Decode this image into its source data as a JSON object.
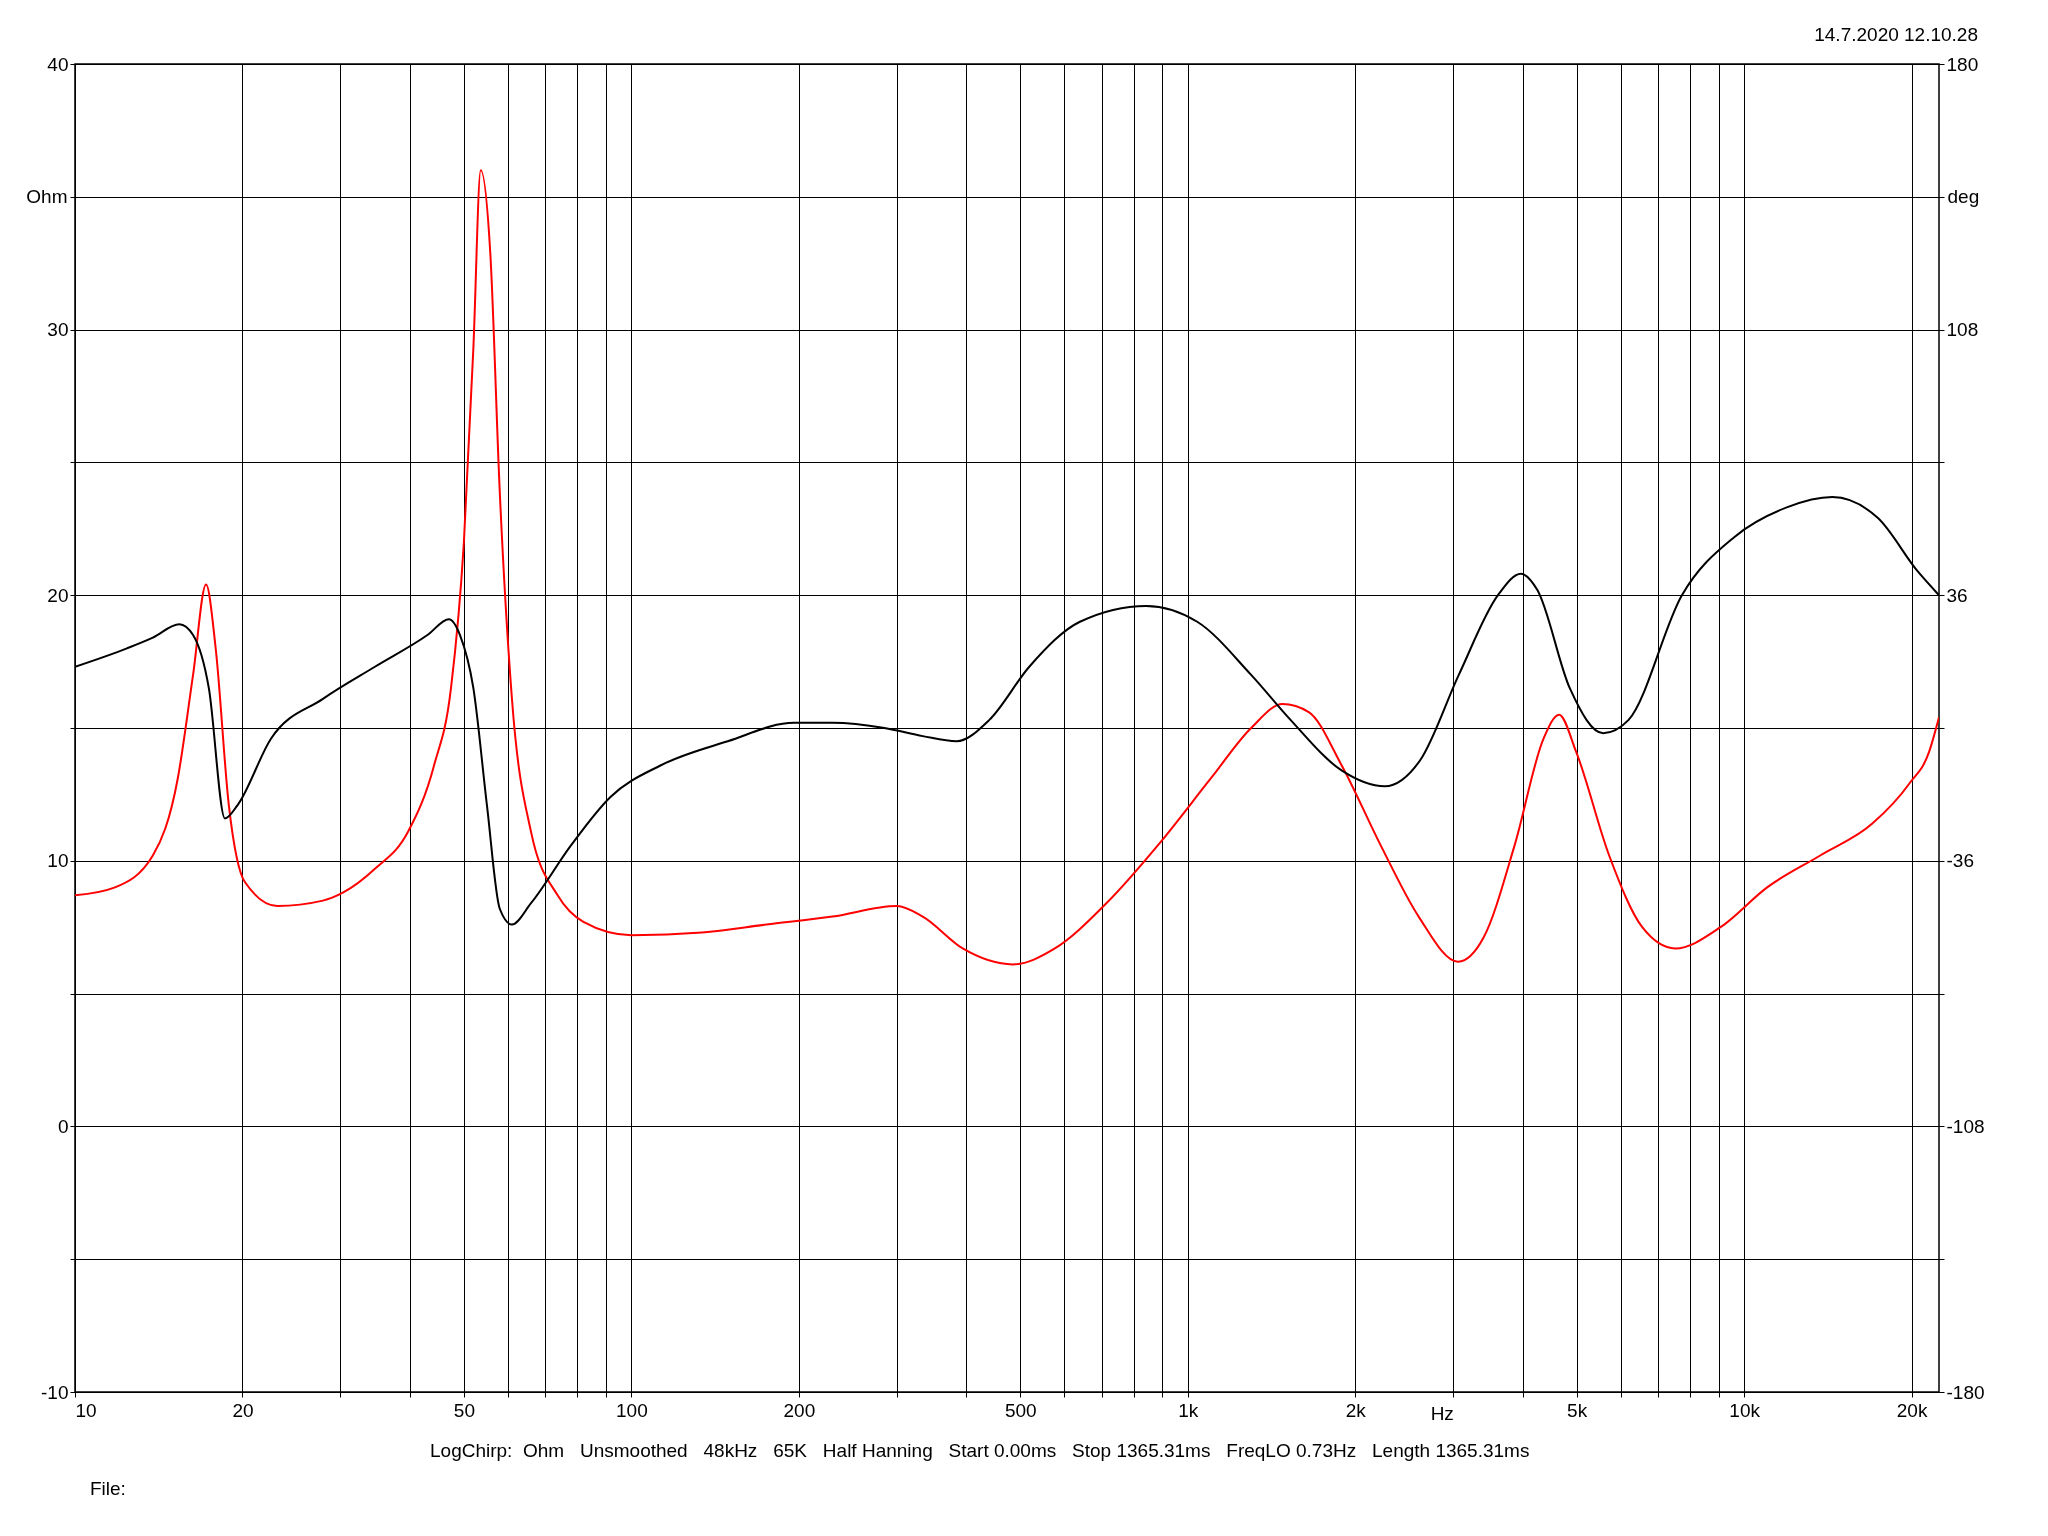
{
  "chart_data": {
    "type": "line",
    "xlabel": "Hz",
    "ylabel": "Ohm",
    "y2label": "deg",
    "log": "x",
    "grid": true,
    "xlim": [
      10,
      22400
    ],
    "ylim": [
      -10,
      40
    ],
    "y2lim": [
      -180,
      180
    ],
    "xticks": [
      10,
      20,
      {
        "value": 30,
        "label": null
      },
      {
        "value": 40,
        "label": null
      },
      50,
      {
        "value": 60,
        "label": null
      },
      {
        "value": 70,
        "label": null
      },
      {
        "value": 80,
        "label": null
      },
      {
        "value": 90,
        "label": null
      },
      100,
      200,
      {
        "value": 300,
        "label": null
      },
      {
        "value": 400,
        "label": null
      },
      500,
      {
        "value": 600,
        "label": null
      },
      {
        "value": 700,
        "label": null
      },
      {
        "value": 800,
        "label": null
      },
      {
        "value": 900,
        "label": null
      },
      {
        "value": 1000,
        "label": "1k"
      },
      {
        "value": 2000,
        "label": "2k"
      },
      {
        "value": 3000,
        "label": null
      },
      {
        "value": 4000,
        "label": null
      },
      {
        "value": 5000,
        "label": "5k"
      },
      {
        "value": 6000,
        "label": null
      },
      {
        "value": 7000,
        "label": null
      },
      {
        "value": 8000,
        "label": null
      },
      {
        "value": 9000,
        "label": null
      },
      {
        "value": 10000,
        "label": "10k"
      },
      {
        "value": 20000,
        "label": "20k"
      }
    ],
    "yticks": [
      -10,
      {
        "value": -5,
        "label": null
      },
      0,
      {
        "value": 5,
        "label": null
      },
      10,
      {
        "value": 15,
        "label": null
      },
      20,
      {
        "value": 25,
        "label": null
      },
      30,
      {
        "value": 35,
        "label": null
      },
      40
    ],
    "y2ticks": [
      -180,
      {
        "value": -144,
        "label": null
      },
      -108,
      {
        "value": -72,
        "label": null
      },
      -36,
      {
        "value": 0,
        "label": null
      },
      36,
      {
        "value": 72,
        "label": null
      },
      108,
      {
        "value": 144,
        "label": null
      },
      180
    ],
    "annotations": [
      "14.7.2020 12.10.28",
      "LogChirp:  Ohm   Unsmoothed   48kHz   65K   Half Hanning   Start 0.00ms   Stop 1365.31ms   FreqLO 0.73Hz   Length 1365.31ms",
      "File:"
    ],
    "series": [
      {
        "color": "#ff0000",
        "x": [
          10,
          11.8,
          13.8,
          15.3,
          16.3,
          17.2,
          17.9,
          18.9,
          20.2,
          23.1,
          27.9,
          30.3,
          34.6,
          39.7,
          44.2,
          47.4,
          50,
          52,
          53.6,
          55.8,
          58,
          61,
          66,
          73.7,
          82,
          100,
          134,
          175,
          230,
          300,
          334,
          394,
          485,
          577,
          714,
          885,
          1100,
          1300,
          1480,
          1650,
          1890,
          2220,
          2600,
          3060,
          3400,
          3870,
          4360,
          4650,
          4990,
          5720,
          6560,
          7520,
          9070,
          11000,
          13700,
          17000,
          19800,
          21500,
          22400
        ],
        "values": [
          8.7,
          9.0,
          10.2,
          13.1,
          17.0,
          20.4,
          18.0,
          12.1,
          9.2,
          8.3,
          8.5,
          8.8,
          9.7,
          11.1,
          13.6,
          16.5,
          22.0,
          29.3,
          36.0,
          32.8,
          23.9,
          16.1,
          11.1,
          8.7,
          7.7,
          7.2,
          7.3,
          7.6,
          7.9,
          8.3,
          7.9,
          6.7,
          6.1,
          6.7,
          8.4,
          10.6,
          13.1,
          15.0,
          15.9,
          15.6,
          13.6,
          10.6,
          7.9,
          6.2,
          7.1,
          10.6,
          14.6,
          15.5,
          14.1,
          10.2,
          7.5,
          6.7,
          7.5,
          9.0,
          10.2,
          11.4,
          12.9,
          14.1,
          15.4
        ]
      },
      {
        "color": "#000000",
        "axis": "y2",
        "x": [
          10,
          12.4,
          13.8,
          15.4,
          16.3,
          17.4,
          18.6,
          19.6,
          22.5,
          27.9,
          34.6,
          43,
          47,
          49.2,
          52,
          55,
          58,
          61,
          66,
          78,
          91.7,
          113,
          149,
          196,
          230,
          285,
          334,
          384,
          440,
          519,
          640,
          842,
          1040,
          1300,
          1530,
          1890,
          2260,
          2620,
          3070,
          3610,
          3970,
          4250,
          4860,
          5580,
          6200,
          7730,
          9610,
          11930,
          14400,
          17400,
          20500,
          22400
        ],
        "values": [
          16.6,
          21.6,
          24.5,
          28.1,
          25.2,
          10.8,
          -24.5,
          -20.9,
          -2.9,
          7.9,
          16.6,
          25.2,
          29.5,
          25.2,
          10.8,
          -20.9,
          -49,
          -53.3,
          -47.5,
          -31.7,
          -18.7,
          -10.1,
          -3.6,
          1.4,
          1.4,
          0,
          -2.2,
          -3.6,
          2.2,
          16.6,
          28.8,
          33.1,
          28.8,
          14.4,
          2.2,
          -11.5,
          -15.8,
          -8.6,
          14.4,
          36,
          41.8,
          37.4,
          10.8,
          -1.4,
          2.2,
          36,
          51.8,
          59.8,
          62.6,
          56.9,
          42.5,
          36
        ]
      }
    ]
  }
}
